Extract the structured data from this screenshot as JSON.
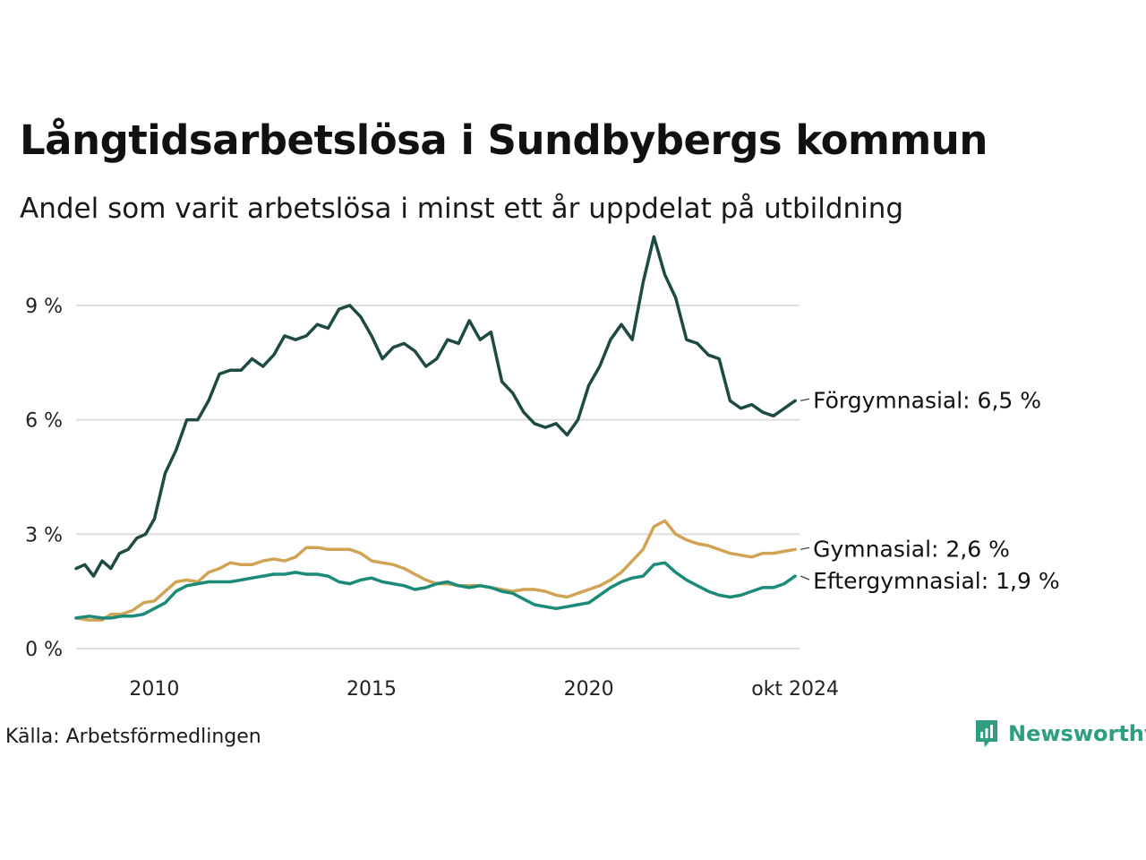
{
  "title": "Långtidsarbetslösa i Sundbybergs kommun",
  "subtitle": "Andel som varit arbetslösa i minst ett år uppdelat på utbildning",
  "source": "Källa: Arbetsförmedlingen",
  "brand": "Newsworthy",
  "colors": {
    "forgymnasial": "#1f4a43",
    "gymnasial": "#d1a455",
    "eftergymnasial": "#1b8a78",
    "grid": "#dddddd",
    "brand": "#2e9d80"
  },
  "chart_data": {
    "type": "line",
    "title": "Långtidsarbetslösa i Sundbybergs kommun",
    "xlabel": "",
    "ylabel": "",
    "xlim": [
      2008.2,
      2024.85
    ],
    "ylim": [
      0,
      10.9
    ],
    "yticks": [
      0,
      3,
      6,
      9
    ],
    "ytick_labels": [
      "0 %",
      "3 %",
      "6 %",
      "9 %"
    ],
    "xticks": [
      2010,
      2015,
      2020,
      2024.75
    ],
    "xtick_labels": [
      "2010",
      "2015",
      "2020",
      "okt 2024"
    ],
    "series": [
      {
        "name": "Förgymnasial",
        "end_label": "Förgymnasial: 6,5 %",
        "x": [
          2008.2,
          2008.4,
          2008.6,
          2008.8,
          2009.0,
          2009.2,
          2009.4,
          2009.6,
          2009.8,
          2010.0,
          2010.25,
          2010.5,
          2010.75,
          2011.0,
          2011.25,
          2011.5,
          2011.75,
          2012.0,
          2012.25,
          2012.5,
          2012.75,
          2013.0,
          2013.25,
          2013.5,
          2013.75,
          2014.0,
          2014.25,
          2014.5,
          2014.75,
          2015.0,
          2015.25,
          2015.5,
          2015.75,
          2016.0,
          2016.25,
          2016.5,
          2016.75,
          2017.0,
          2017.25,
          2017.5,
          2017.75,
          2018.0,
          2018.25,
          2018.5,
          2018.75,
          2019.0,
          2019.25,
          2019.5,
          2019.75,
          2020.0,
          2020.25,
          2020.5,
          2020.75,
          2021.0,
          2021.25,
          2021.5,
          2021.75,
          2022.0,
          2022.25,
          2022.5,
          2022.75,
          2023.0,
          2023.25,
          2023.5,
          2023.75,
          2024.0,
          2024.25,
          2024.5,
          2024.75
        ],
        "values": [
          2.1,
          2.2,
          1.9,
          2.3,
          2.1,
          2.5,
          2.6,
          2.9,
          3.0,
          3.4,
          4.6,
          5.2,
          6.0,
          6.0,
          6.5,
          7.2,
          7.3,
          7.3,
          7.6,
          7.4,
          7.7,
          8.2,
          8.1,
          8.2,
          8.5,
          8.4,
          8.9,
          9.0,
          8.7,
          8.2,
          7.6,
          7.9,
          8.0,
          7.8,
          7.4,
          7.6,
          8.1,
          8.0,
          8.6,
          8.1,
          8.3,
          7.0,
          6.7,
          6.2,
          5.9,
          5.8,
          5.9,
          5.6,
          6.0,
          6.9,
          7.4,
          8.1,
          8.5,
          8.1,
          9.6,
          10.8,
          9.8,
          9.2,
          8.1,
          8.0,
          7.7,
          7.6,
          6.5,
          6.3,
          6.4,
          6.2,
          6.1,
          6.3,
          6.5
        ]
      },
      {
        "name": "Gymnasial",
        "end_label": "Gymnasial: 2,6 %",
        "x": [
          2008.2,
          2008.5,
          2008.8,
          2009.0,
          2009.25,
          2009.5,
          2009.75,
          2010.0,
          2010.25,
          2010.5,
          2010.75,
          2011.0,
          2011.25,
          2011.5,
          2011.75,
          2012.0,
          2012.25,
          2012.5,
          2012.75,
          2013.0,
          2013.25,
          2013.5,
          2013.75,
          2014.0,
          2014.25,
          2014.5,
          2014.75,
          2015.0,
          2015.25,
          2015.5,
          2015.75,
          2016.0,
          2016.25,
          2016.5,
          2016.75,
          2017.0,
          2017.25,
          2017.5,
          2017.75,
          2018.0,
          2018.25,
          2018.5,
          2018.75,
          2019.0,
          2019.25,
          2019.5,
          2019.75,
          2020.0,
          2020.25,
          2020.5,
          2020.75,
          2021.0,
          2021.25,
          2021.5,
          2021.75,
          2022.0,
          2022.25,
          2022.5,
          2022.75,
          2023.0,
          2023.25,
          2023.5,
          2023.75,
          2024.0,
          2024.25,
          2024.5,
          2024.75
        ],
        "values": [
          0.8,
          0.75,
          0.75,
          0.9,
          0.9,
          1.0,
          1.2,
          1.25,
          1.5,
          1.75,
          1.8,
          1.75,
          2.0,
          2.1,
          2.25,
          2.2,
          2.2,
          2.3,
          2.35,
          2.3,
          2.4,
          2.65,
          2.65,
          2.6,
          2.6,
          2.6,
          2.5,
          2.3,
          2.25,
          2.2,
          2.1,
          1.95,
          1.8,
          1.7,
          1.7,
          1.65,
          1.65,
          1.65,
          1.6,
          1.55,
          1.5,
          1.55,
          1.55,
          1.5,
          1.4,
          1.35,
          1.45,
          1.55,
          1.65,
          1.8,
          2.0,
          2.3,
          2.6,
          3.2,
          3.35,
          3.0,
          2.85,
          2.75,
          2.7,
          2.6,
          2.5,
          2.45,
          2.4,
          2.5,
          2.5,
          2.55,
          2.6
        ]
      },
      {
        "name": "Eftergymnasial",
        "end_label": "Eftergymnasial: 1,9 %",
        "x": [
          2008.2,
          2008.5,
          2008.8,
          2009.0,
          2009.25,
          2009.5,
          2009.75,
          2010.0,
          2010.25,
          2010.5,
          2010.75,
          2011.0,
          2011.25,
          2011.5,
          2011.75,
          2012.0,
          2012.25,
          2012.5,
          2012.75,
          2013.0,
          2013.25,
          2013.5,
          2013.75,
          2014.0,
          2014.25,
          2014.5,
          2014.75,
          2015.0,
          2015.25,
          2015.5,
          2015.75,
          2016.0,
          2016.25,
          2016.5,
          2016.75,
          2017.0,
          2017.25,
          2017.5,
          2017.75,
          2018.0,
          2018.25,
          2018.5,
          2018.75,
          2019.0,
          2019.25,
          2019.5,
          2019.75,
          2020.0,
          2020.25,
          2020.5,
          2020.75,
          2021.0,
          2021.25,
          2021.5,
          2021.75,
          2022.0,
          2022.25,
          2022.5,
          2022.75,
          2023.0,
          2023.25,
          2023.5,
          2023.75,
          2024.0,
          2024.25,
          2024.5,
          2024.75
        ],
        "values": [
          0.8,
          0.85,
          0.8,
          0.8,
          0.85,
          0.85,
          0.9,
          1.05,
          1.2,
          1.5,
          1.65,
          1.7,
          1.75,
          1.75,
          1.75,
          1.8,
          1.85,
          1.9,
          1.95,
          1.95,
          2.0,
          1.95,
          1.95,
          1.9,
          1.75,
          1.7,
          1.8,
          1.85,
          1.75,
          1.7,
          1.65,
          1.55,
          1.6,
          1.7,
          1.75,
          1.65,
          1.6,
          1.65,
          1.6,
          1.5,
          1.45,
          1.3,
          1.15,
          1.1,
          1.05,
          1.1,
          1.15,
          1.2,
          1.4,
          1.6,
          1.75,
          1.85,
          1.9,
          2.2,
          2.25,
          2.0,
          1.8,
          1.65,
          1.5,
          1.4,
          1.35,
          1.4,
          1.5,
          1.6,
          1.6,
          1.7,
          1.9
        ]
      }
    ]
  }
}
